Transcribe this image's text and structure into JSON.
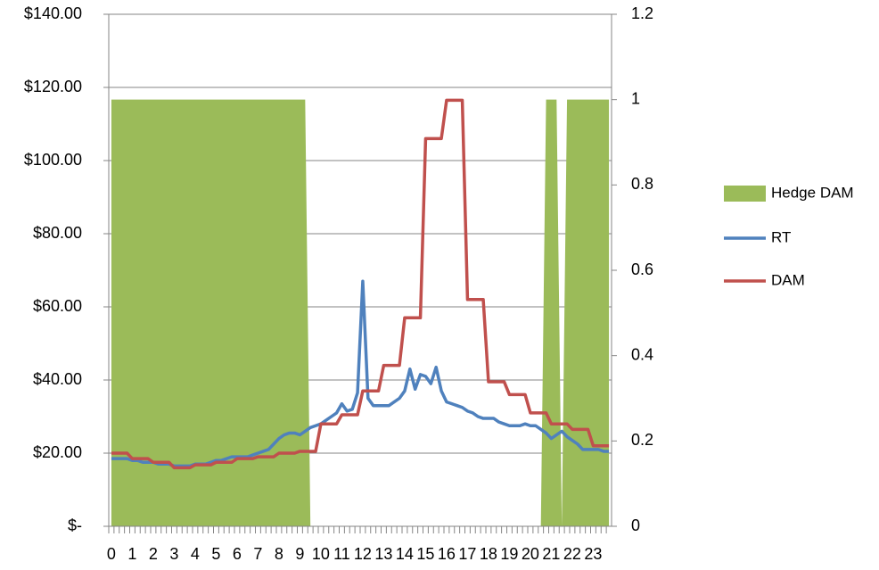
{
  "chart_data": {
    "type": "line",
    "categories": [
      "0",
      null,
      null,
      null,
      "1",
      null,
      null,
      null,
      "2",
      null,
      null,
      null,
      "3",
      null,
      null,
      null,
      "4",
      null,
      null,
      null,
      "5",
      null,
      null,
      null,
      "6",
      null,
      null,
      null,
      "7",
      null,
      null,
      null,
      "8",
      null,
      null,
      null,
      "9",
      null,
      null,
      null,
      "10",
      null,
      null,
      null,
      "11",
      null,
      null,
      null,
      "12",
      null,
      null,
      null,
      "13",
      null,
      null,
      null,
      "14",
      null,
      null,
      null,
      "15",
      null,
      null,
      null,
      "16",
      null,
      null,
      null,
      "17",
      null,
      null,
      null,
      "18",
      null,
      null,
      null,
      "19",
      null,
      null,
      null,
      "20",
      null,
      null,
      null,
      "21",
      null,
      null,
      null,
      "22",
      null,
      null,
      null,
      "23",
      null,
      null,
      null
    ],
    "series": [
      {
        "name": "Hedge DAM",
        "type": "area",
        "axis": "y2",
        "color": "#9bbb59",
        "values": [
          1,
          1,
          1,
          1,
          1,
          1,
          1,
          1,
          1,
          1,
          1,
          1,
          1,
          1,
          1,
          1,
          1,
          1,
          1,
          1,
          1,
          1,
          1,
          1,
          1,
          1,
          1,
          1,
          1,
          1,
          1,
          1,
          1,
          1,
          1,
          1,
          1,
          1,
          0,
          0,
          0,
          0,
          0,
          0,
          0,
          0,
          0,
          0,
          0,
          0,
          0,
          0,
          0,
          0,
          0,
          0,
          0,
          0,
          0,
          0,
          0,
          0,
          0,
          0,
          0,
          0,
          0,
          0,
          0,
          0,
          0,
          0,
          0,
          0,
          0,
          0,
          0,
          0,
          0,
          0,
          0,
          0,
          0,
          1,
          1,
          1,
          0,
          1,
          1,
          1,
          1,
          1,
          1,
          1,
          1,
          1
        ]
      },
      {
        "name": "RT",
        "type": "line",
        "color": "#4f81bd",
        "values": [
          18.5,
          18.5,
          18.5,
          18.5,
          18,
          18,
          17.5,
          17.5,
          17.5,
          17,
          17,
          17,
          16.5,
          16.5,
          16.5,
          16.5,
          17,
          17,
          17,
          17.5,
          18,
          18,
          18.5,
          19,
          19,
          19,
          19,
          19.5,
          20,
          20.5,
          21,
          22.5,
          24,
          25,
          25.5,
          25.5,
          25,
          26,
          27,
          27.5,
          28,
          29,
          30,
          31,
          33.5,
          31.5,
          32,
          36.5,
          67,
          35,
          33,
          33,
          33,
          33,
          34,
          35,
          37,
          43,
          37.5,
          41.5,
          41,
          39,
          43.5,
          37,
          34,
          33.5,
          33,
          32.5,
          31.5,
          31,
          30,
          29.5,
          29.5,
          29.5,
          28.5,
          28,
          27.5,
          27.5,
          27.5,
          28,
          27.5,
          27.5,
          26.5,
          25.5,
          24,
          25,
          26,
          24.5,
          23.5,
          22.5,
          21,
          21,
          21,
          21,
          20.5,
          20.5
        ]
      },
      {
        "name": "DAM",
        "type": "line",
        "color": "#c0504d",
        "values": [
          20,
          20,
          20,
          20,
          18.5,
          18.5,
          18.5,
          18.5,
          17.5,
          17.5,
          17.5,
          17.5,
          16,
          16,
          16,
          16,
          16.8,
          16.8,
          16.8,
          16.8,
          17.5,
          17.5,
          17.5,
          17.5,
          18.5,
          18.5,
          18.5,
          18.5,
          19,
          19,
          19,
          19,
          20,
          20,
          20,
          20,
          20.5,
          20.5,
          20.5,
          20.5,
          28,
          28,
          28,
          28,
          30.5,
          30.5,
          30.5,
          30.5,
          37,
          37,
          37,
          37,
          44,
          44,
          44,
          44,
          57,
          57,
          57,
          57,
          106,
          106,
          106,
          106,
          116.5,
          116.5,
          116.5,
          116.5,
          62,
          62,
          62,
          62,
          39.5,
          39.5,
          39.5,
          39.5,
          36,
          36,
          36,
          36,
          31,
          31,
          31,
          31,
          28,
          28,
          28,
          28,
          26.5,
          26.5,
          26.5,
          26.5,
          22,
          22,
          22,
          22
        ]
      }
    ],
    "ylim": [
      0,
      140
    ],
    "yticks": [
      {
        "value": 0,
        "label": "$-"
      },
      {
        "value": 20,
        "label": "$20.00"
      },
      {
        "value": 40,
        "label": "$40.00"
      },
      {
        "value": 60,
        "label": "$60.00"
      },
      {
        "value": 80,
        "label": "$80.00"
      },
      {
        "value": 100,
        "label": "$100.00"
      },
      {
        "value": 120,
        "label": "$120.00"
      },
      {
        "value": 140,
        "label": "$140.00"
      }
    ],
    "y2lim": [
      0,
      1.2
    ],
    "y2ticks": [
      0,
      0.2,
      0.4,
      0.6,
      0.8,
      1,
      1.2
    ],
    "grid": true,
    "legend": "right"
  }
}
